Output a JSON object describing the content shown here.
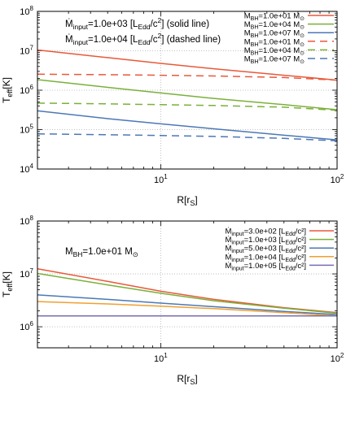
{
  "chart_data": [
    {
      "type": "line",
      "xlabel": "R[r_S]",
      "ylabel": "T_eff[K]",
      "xscale": "log",
      "yscale": "log",
      "xlim": [
        2,
        100
      ],
      "ylim": [
        10000,
        100000000
      ],
      "grid": true,
      "legend_position": "top-right",
      "x_ticks": [
        {
          "value": 10,
          "exp": "1"
        },
        {
          "value": 100,
          "exp": "2"
        }
      ],
      "y_ticks": [
        {
          "value": 10000,
          "exp": "4"
        },
        {
          "value": 100000,
          "exp": "5"
        },
        {
          "value": 1000000,
          "exp": "6"
        },
        {
          "value": 10000000,
          "exp": "7"
        },
        {
          "value": 100000000,
          "exp": "8"
        }
      ],
      "annotations": [
        {
          "base": "Ṁ",
          "sub": "input",
          "text": "=1.0e+03 [L",
          "sub2": "Edd",
          "tail": "/c",
          "sup": "2",
          "end": "] (solid line)"
        },
        {
          "base": "Ṁ",
          "sub": "input",
          "text": "=1.0e+04 [L",
          "sub2": "Edd",
          "tail": "/c",
          "sup": "2",
          "end": "] (dashed line)"
        }
      ],
      "series": [
        {
          "name": "M_BH=1.0e+01 M_sun",
          "label_base": "M",
          "label_sub": "BH",
          "label_text": "=1.0e+01 M",
          "label_end": "⊙",
          "color": "#e8593a",
          "dash": "solid",
          "x": [
            2,
            5,
            10,
            20,
            50,
            100
          ],
          "values": [
            10500000,
            6700000,
            4800000,
            3500000,
            2400000,
            1800000
          ]
        },
        {
          "name": "M_BH=1.0e+04 M_sun",
          "label_base": "M",
          "label_sub": "BH",
          "label_text": "=1.0e+04 M",
          "label_end": "⊙",
          "color": "#7ab03a",
          "dash": "solid",
          "x": [
            2,
            5,
            10,
            20,
            50,
            100
          ],
          "values": [
            1850000,
            1180000,
            850000,
            620000,
            430000,
            320000
          ]
        },
        {
          "name": "M_BH=1.0e+07 M_sun",
          "label_base": "M",
          "label_sub": "BH",
          "label_text": "=1.0e+07 M",
          "label_end": "⊙",
          "color": "#4c78b5",
          "dash": "solid",
          "x": [
            2,
            5,
            10,
            20,
            50,
            100
          ],
          "values": [
            300000,
            190000,
            140000,
            105000,
            72000,
            55000
          ]
        },
        {
          "name": "M_BH=1.0e+01 M_sun",
          "label_base": "M",
          "label_sub": "BH",
          "label_text": "=1.0e+01 M",
          "label_end": "⊙",
          "color": "#e8593a",
          "dash": "dashed",
          "x": [
            2,
            5,
            10,
            20,
            50,
            100
          ],
          "values": [
            2550000,
            2480000,
            2400000,
            2300000,
            2100000,
            1800000
          ]
        },
        {
          "name": "M_BH=1.0e+04 M_sun",
          "label_base": "M",
          "label_sub": "BH",
          "label_text": "=1.0e+04 M",
          "label_end": "⊙",
          "color": "#7ab03a",
          "dash": "dashed",
          "x": [
            2,
            5,
            10,
            20,
            50,
            100
          ],
          "values": [
            470000,
            450000,
            430000,
            410000,
            370000,
            310000
          ]
        },
        {
          "name": "M_BH=1.0e+07 M_sun",
          "label_base": "M",
          "label_sub": "BH",
          "label_text": "=1.0e+07 M",
          "label_end": "⊙",
          "color": "#4c78b5",
          "dash": "dashed",
          "x": [
            2,
            5,
            10,
            20,
            50,
            100
          ],
          "values": [
            78000,
            74000,
            71000,
            67000,
            60000,
            52000
          ]
        }
      ]
    },
    {
      "type": "line",
      "xlabel": "R[r_S]",
      "ylabel": "T_eff[K]",
      "xscale": "log",
      "yscale": "log",
      "xlim": [
        2,
        100
      ],
      "ylim": [
        400000,
        100000000
      ],
      "grid": true,
      "legend_position": "top-right",
      "x_ticks": [
        {
          "value": 10,
          "exp": "1"
        },
        {
          "value": 100,
          "exp": "2"
        }
      ],
      "y_ticks": [
        {
          "value": 1000000,
          "exp": "6"
        },
        {
          "value": 10000000,
          "exp": "7"
        },
        {
          "value": 100000000,
          "exp": "8"
        }
      ],
      "annotations": [
        {
          "base": "M",
          "sub": "BH",
          "text": "=1.0e+01 M",
          "sub2": "",
          "tail": "⊙",
          "sup": "",
          "end": ""
        }
      ],
      "series": [
        {
          "name": "Mdot_input=3.0e+02 [L_Edd/c^2]",
          "label_base": "Ṁ",
          "label_sub": "input",
          "label_text": "=3.0e+02 [L",
          "label_sub2": "Edd",
          "label_end": "/c²]",
          "color": "#e8593a",
          "dash": "solid",
          "x": [
            2,
            5,
            10,
            20,
            50,
            100
          ],
          "values": [
            12500000,
            7200000,
            4700000,
            3300000,
            2300000,
            1850000
          ]
        },
        {
          "name": "Mdot_input=1.0e+03 [L_Edd/c^2]",
          "label_base": "Ṁ",
          "label_sub": "input",
          "label_text": "=1.0e+03 [L",
          "label_sub2": "Edd",
          "label_end": "/c²]",
          "color": "#7ab03a",
          "dash": "solid",
          "x": [
            2,
            5,
            10,
            20,
            50,
            100
          ],
          "values": [
            10200000,
            6200000,
            4300000,
            3100000,
            2250000,
            1800000
          ]
        },
        {
          "name": "Mdot_input=5.0e+03 [L_Edd/c^2]",
          "label_base": "Ṁ",
          "label_sub": "input",
          "label_text": "=5.0e+03 [L",
          "label_sub2": "Edd",
          "label_end": "/c²]",
          "color": "#4c78b5",
          "dash": "solid",
          "x": [
            2,
            5,
            10,
            20,
            50,
            100
          ],
          "values": [
            4000000,
            3300000,
            2800000,
            2400000,
            1950000,
            1700000
          ]
        },
        {
          "name": "Mdot_input=1.0e+04 [L_Edd/c^2]",
          "label_base": "Ṁ",
          "label_sub": "input",
          "label_text": "=1.0e+04 [L",
          "label_sub2": "Edd",
          "label_end": "/c²]",
          "color": "#f0a030",
          "dash": "solid",
          "x": [
            2,
            5,
            10,
            20,
            50,
            100
          ],
          "values": [
            3000000,
            2700000,
            2450000,
            2200000,
            1850000,
            1600000
          ]
        },
        {
          "name": "Mdot_input=1.0e+05 [L_Edd/c^2]",
          "label_base": "Ṁ",
          "label_sub": "input",
          "label_text": "=1.0e+05 [L",
          "label_sub2": "Edd",
          "label_end": "/c²]",
          "color": "#7a6cb0",
          "dash": "solid",
          "x": [
            2,
            5,
            10,
            20,
            50,
            100
          ],
          "values": [
            1600000,
            1600000,
            1600000,
            1600000,
            1600000,
            1600000
          ]
        }
      ]
    }
  ]
}
